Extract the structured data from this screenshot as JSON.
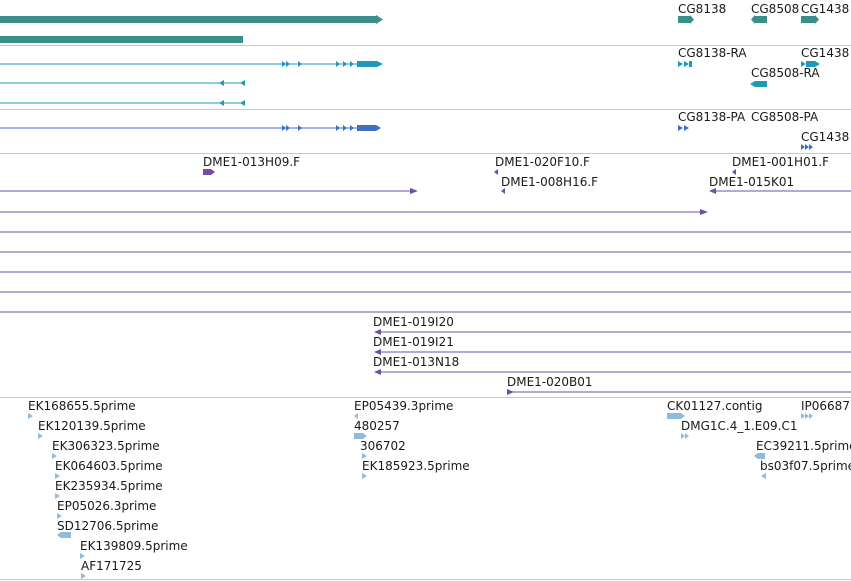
{
  "colors": {
    "gene": "#3a8f8a",
    "transcript": "#1f9ab6",
    "protein": "#3f6ecb",
    "clone": "#6f4fa5",
    "est": "#8fbcdc",
    "divider": "#c8c8c8"
  },
  "tracks": {
    "genes": {
      "labels": [
        {
          "id": "cg8138",
          "text": "CG8138"
        },
        {
          "id": "cg8508",
          "text": "CG8508"
        },
        {
          "id": "cg1438",
          "text": "CG1438"
        }
      ]
    },
    "transcripts": {
      "labels": [
        {
          "id": "cg8138-ra",
          "text": "CG8138-RA"
        },
        {
          "id": "cg1438-r",
          "text": "CG1438"
        },
        {
          "id": "cg8508-ra",
          "text": "CG8508-RA"
        }
      ]
    },
    "proteins": {
      "labels": [
        {
          "id": "cg8138-pa",
          "text": "CG8138-PA"
        },
        {
          "id": "cg8508-pa",
          "text": "CG8508-PA"
        },
        {
          "id": "cg1438-p",
          "text": "CG1438"
        }
      ]
    },
    "clones": {
      "labels": [
        {
          "id": "dme1-013h09",
          "text": "DME1-013H09.F"
        },
        {
          "id": "dme1-020f10",
          "text": "DME1-020F10.F"
        },
        {
          "id": "dme1-008h16",
          "text": "DME1-008H16.F"
        },
        {
          "id": "dme1-001h01",
          "text": "DME1-001H01.F"
        },
        {
          "id": "dme1-015k01",
          "text": "DME1-015K01"
        },
        {
          "id": "dme1-019i20",
          "text": "DME1-019I20"
        },
        {
          "id": "dme1-019i21",
          "text": "DME1-019I21"
        },
        {
          "id": "dme1-013n18",
          "text": "DME1-013N18"
        },
        {
          "id": "dme1-020b01",
          "text": "DME1-020B01"
        }
      ]
    },
    "ests": {
      "labels": [
        {
          "id": "ek168655",
          "text": "EK168655.5prime"
        },
        {
          "id": "ek120139",
          "text": "EK120139.5prime"
        },
        {
          "id": "ek306323",
          "text": "EK306323.5prime"
        },
        {
          "id": "ek064603",
          "text": "EK064603.5prime"
        },
        {
          "id": "ek235934",
          "text": "EK235934.5prime"
        },
        {
          "id": "ep05026",
          "text": "EP05026.3prime"
        },
        {
          "id": "sd12706",
          "text": "SD12706.5prime"
        },
        {
          "id": "ek139809",
          "text": "EK139809.5prime"
        },
        {
          "id": "af171725",
          "text": "AF171725"
        },
        {
          "id": "ep05439",
          "text": "EP05439.3prime"
        },
        {
          "id": "e480257",
          "text": "480257"
        },
        {
          "id": "e306702",
          "text": "306702"
        },
        {
          "id": "ek185923",
          "text": "EK185923.5prime"
        },
        {
          "id": "ck01127",
          "text": "CK01127.contig"
        },
        {
          "id": "dmg1c4",
          "text": "DMG1C.4_1.E09.C1"
        },
        {
          "id": "ip06687",
          "text": "IP06687"
        },
        {
          "id": "ec39211",
          "text": "EC39211.5prime"
        },
        {
          "id": "bs03f07",
          "text": "bs03f07.5prime"
        }
      ]
    }
  }
}
